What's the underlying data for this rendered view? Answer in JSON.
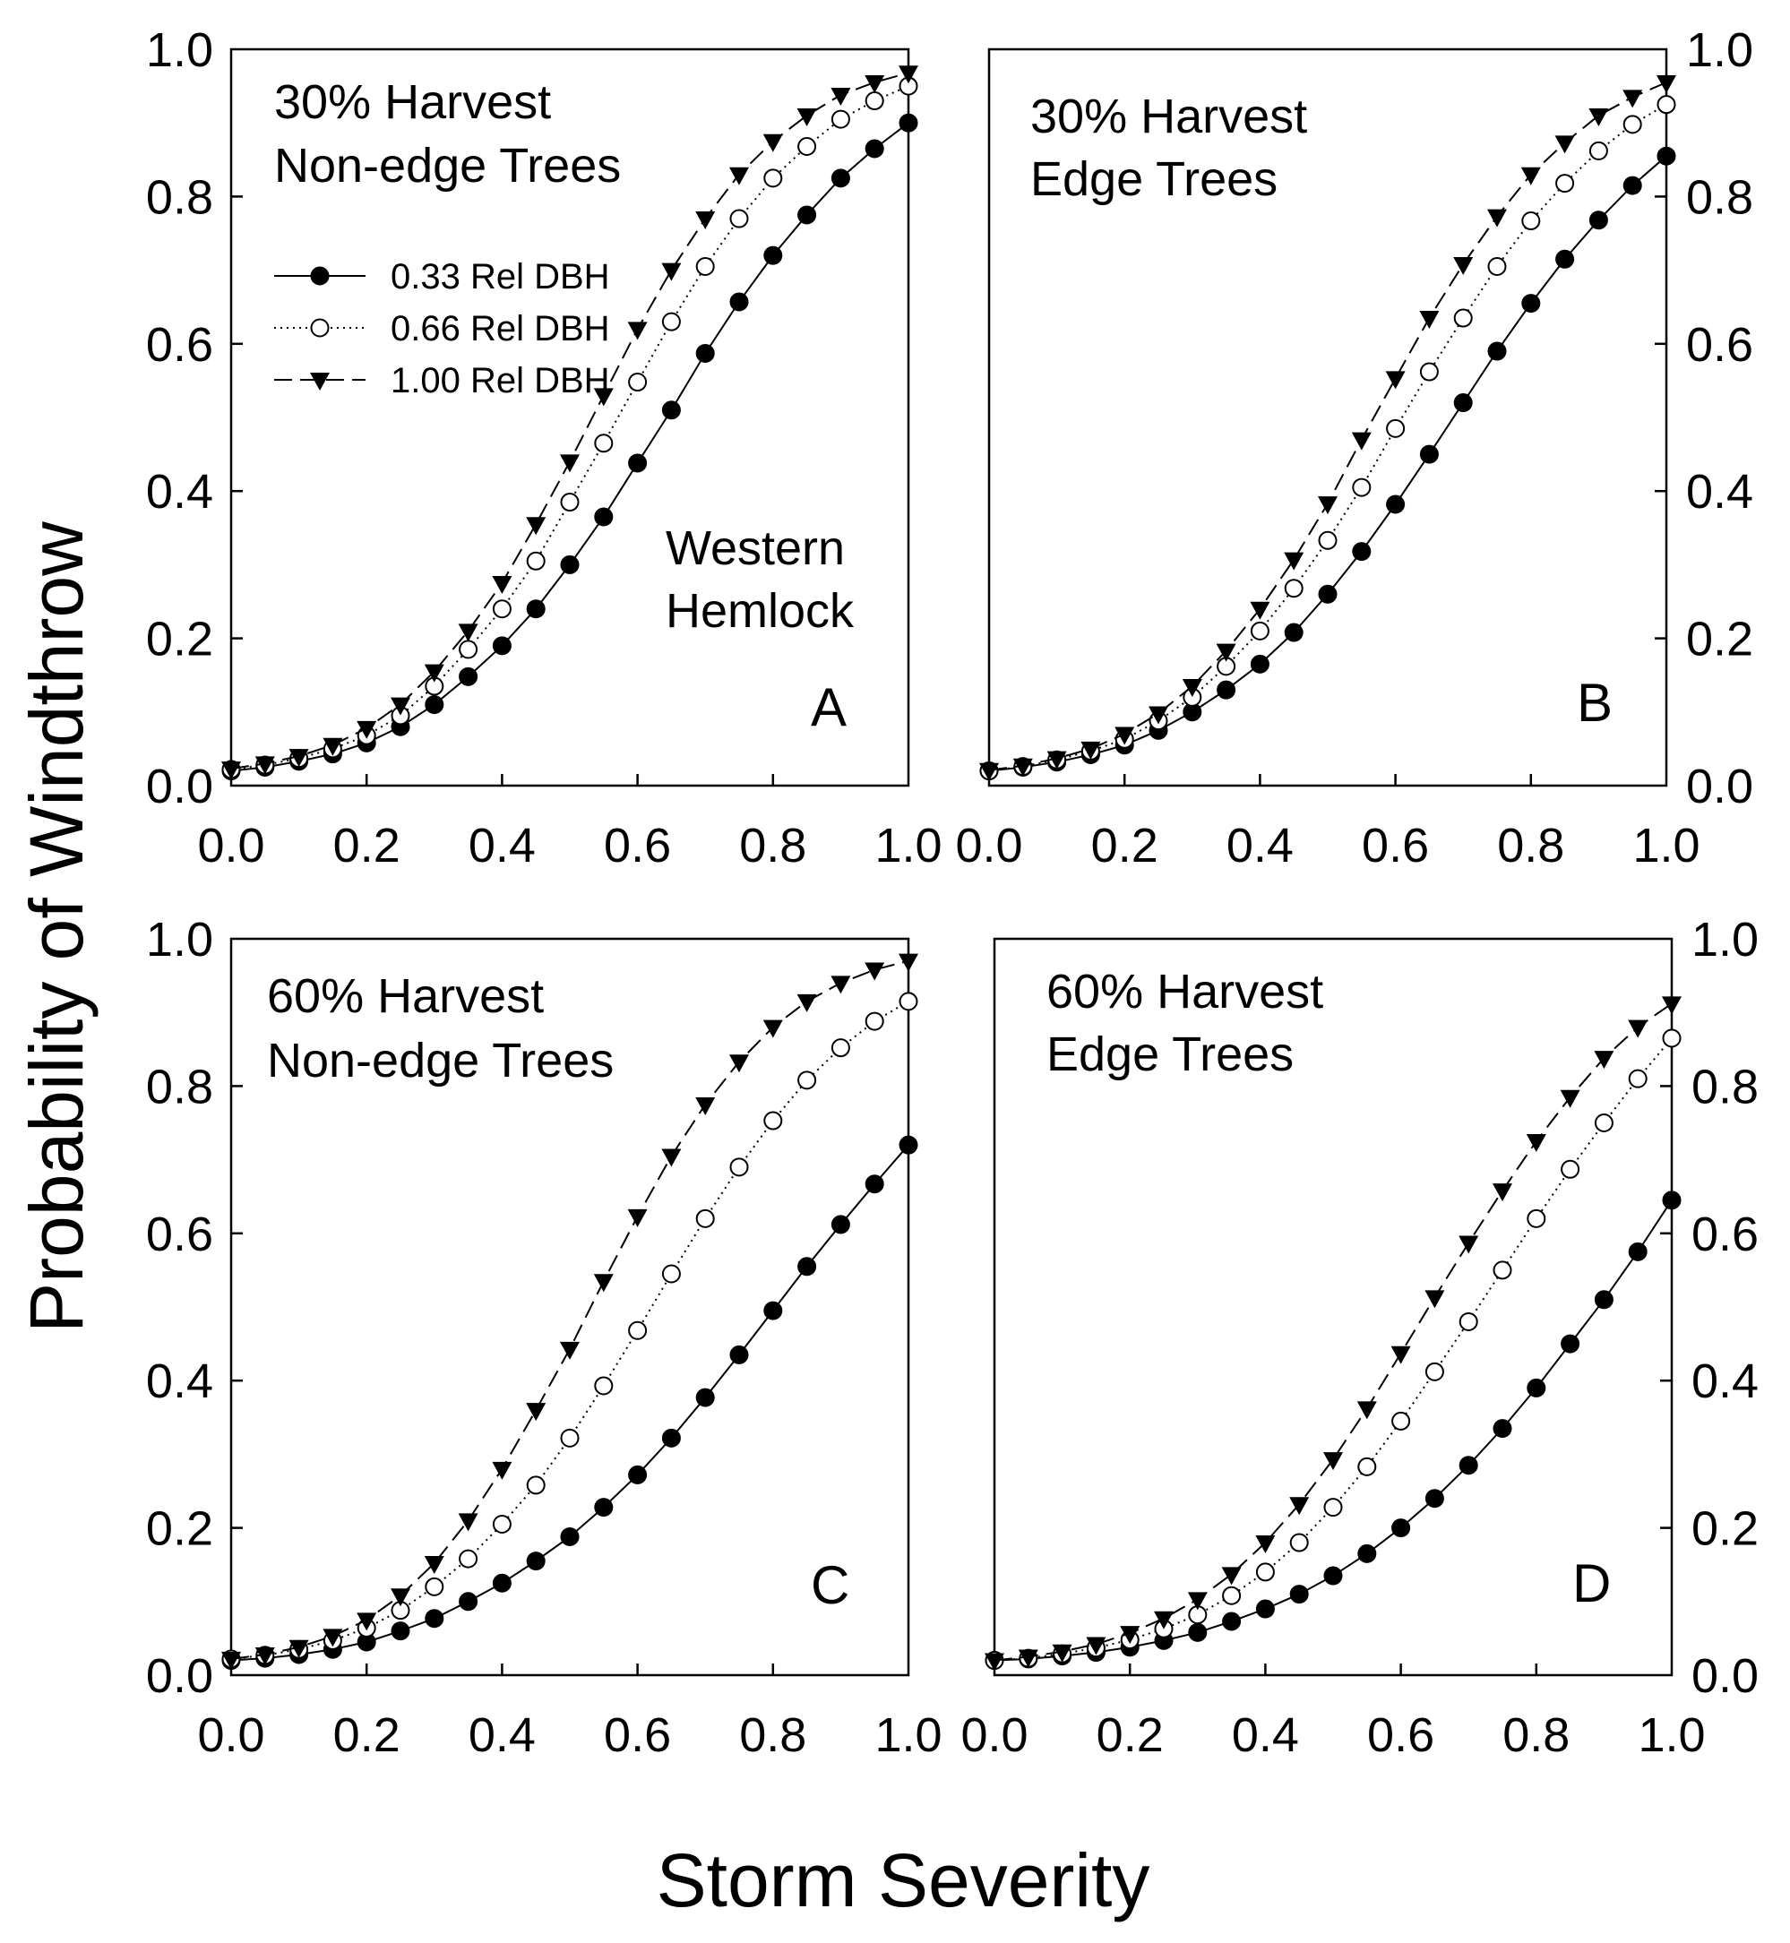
{
  "figure": {
    "xlabel": "Storm Severity",
    "ylabel": "Probability of Windthrow",
    "species_label": [
      "Western",
      "Hemlock"
    ]
  },
  "legend": [
    {
      "label": "0.33 Rel DBH",
      "marker": "filled-circle",
      "line": "solid"
    },
    {
      "label": "0.66 Rel DBH",
      "marker": "open-circle",
      "line": "dotted"
    },
    {
      "label": "1.00 Rel DBH",
      "marker": "filled-triangle-down",
      "line": "dashed"
    }
  ],
  "axes": {
    "xticks": [
      "0.0",
      "0.2",
      "0.4",
      "0.6",
      "0.8",
      "1.0"
    ],
    "yticks": [
      "0.0",
      "0.2",
      "0.4",
      "0.6",
      "0.8",
      "1.0"
    ]
  },
  "chart_data": [
    {
      "type": "line",
      "panel": "A",
      "title": [
        "30% Harvest",
        "Non-edge Trees"
      ],
      "xlabel": "Storm Severity",
      "ylabel": "Probability of Windthrow",
      "xlim": [
        0,
        1
      ],
      "ylim": [
        0,
        1
      ],
      "x": [
        0.0,
        0.05,
        0.1,
        0.15,
        0.2,
        0.25,
        0.3,
        0.35,
        0.4,
        0.45,
        0.5,
        0.55,
        0.6,
        0.65,
        0.7,
        0.75,
        0.8,
        0.85,
        0.9,
        0.95,
        1.0
      ],
      "series": [
        {
          "name": "0.33 Rel DBH",
          "values": [
            0.02,
            0.025,
            0.033,
            0.043,
            0.058,
            0.08,
            0.11,
            0.148,
            0.19,
            0.24,
            0.3,
            0.365,
            0.438,
            0.51,
            0.587,
            0.657,
            0.72,
            0.775,
            0.825,
            0.865,
            0.9
          ]
        },
        {
          "name": "0.66 Rel DBH",
          "values": [
            0.022,
            0.028,
            0.037,
            0.05,
            0.068,
            0.095,
            0.135,
            0.185,
            0.24,
            0.305,
            0.385,
            0.465,
            0.548,
            0.63,
            0.705,
            0.77,
            0.825,
            0.868,
            0.905,
            0.93,
            0.95
          ]
        },
        {
          "name": "1.00 Rel DBH",
          "values": [
            0.023,
            0.03,
            0.04,
            0.055,
            0.078,
            0.11,
            0.155,
            0.21,
            0.275,
            0.355,
            0.44,
            0.53,
            0.62,
            0.7,
            0.77,
            0.83,
            0.875,
            0.91,
            0.938,
            0.955,
            0.968
          ]
        }
      ]
    },
    {
      "type": "line",
      "panel": "B",
      "title": [
        "30% Harvest",
        "Edge Trees"
      ],
      "xlabel": "Storm Severity",
      "ylabel": "Probability of Windthrow",
      "xlim": [
        0,
        1
      ],
      "ylim": [
        0,
        1
      ],
      "x": [
        0.0,
        0.05,
        0.1,
        0.15,
        0.2,
        0.25,
        0.3,
        0.35,
        0.4,
        0.45,
        0.5,
        0.55,
        0.6,
        0.65,
        0.7,
        0.75,
        0.8,
        0.85,
        0.9,
        0.95,
        1.0
      ],
      "series": [
        {
          "name": "0.33 Rel DBH",
          "values": [
            0.02,
            0.025,
            0.032,
            0.042,
            0.055,
            0.075,
            0.1,
            0.13,
            0.165,
            0.208,
            0.26,
            0.318,
            0.382,
            0.45,
            0.52,
            0.59,
            0.655,
            0.715,
            0.768,
            0.815,
            0.855
          ]
        },
        {
          "name": "0.66 Rel DBH",
          "values": [
            0.02,
            0.026,
            0.035,
            0.047,
            0.063,
            0.088,
            0.12,
            0.162,
            0.21,
            0.268,
            0.333,
            0.405,
            0.485,
            0.562,
            0.635,
            0.705,
            0.767,
            0.818,
            0.862,
            0.898,
            0.925
          ]
        },
        {
          "name": "1.00 Rel DBH",
          "values": [
            0.021,
            0.027,
            0.037,
            0.05,
            0.07,
            0.098,
            0.135,
            0.183,
            0.24,
            0.307,
            0.383,
            0.47,
            0.553,
            0.635,
            0.708,
            0.773,
            0.83,
            0.873,
            0.91,
            0.935,
            0.955
          ]
        }
      ]
    },
    {
      "type": "line",
      "panel": "C",
      "title": [
        "60% Harvest",
        "Non-edge Trees"
      ],
      "xlabel": "Storm Severity",
      "ylabel": "Probability of Windthrow",
      "xlim": [
        0,
        1
      ],
      "ylim": [
        0,
        1
      ],
      "x": [
        0.0,
        0.05,
        0.1,
        0.15,
        0.2,
        0.25,
        0.3,
        0.35,
        0.4,
        0.45,
        0.5,
        0.55,
        0.6,
        0.65,
        0.7,
        0.75,
        0.8,
        0.85,
        0.9,
        0.95,
        1.0
      ],
      "series": [
        {
          "name": "0.33 Rel DBH",
          "values": [
            0.02,
            0.023,
            0.028,
            0.035,
            0.045,
            0.06,
            0.077,
            0.1,
            0.125,
            0.155,
            0.188,
            0.228,
            0.272,
            0.322,
            0.377,
            0.435,
            0.495,
            0.555,
            0.612,
            0.667,
            0.72
          ]
        },
        {
          "name": "0.66 Rel DBH",
          "values": [
            0.022,
            0.027,
            0.035,
            0.047,
            0.064,
            0.088,
            0.12,
            0.158,
            0.205,
            0.258,
            0.322,
            0.393,
            0.468,
            0.545,
            0.62,
            0.69,
            0.753,
            0.808,
            0.852,
            0.888,
            0.915
          ]
        },
        {
          "name": "1.00 Rel DBH",
          "values": [
            0.022,
            0.028,
            0.038,
            0.053,
            0.075,
            0.108,
            0.152,
            0.21,
            0.28,
            0.36,
            0.443,
            0.535,
            0.623,
            0.705,
            0.775,
            0.833,
            0.88,
            0.915,
            0.94,
            0.958,
            0.97
          ]
        }
      ]
    },
    {
      "type": "line",
      "panel": "D",
      "title": [
        "60% Harvest",
        "Edge Trees"
      ],
      "xlabel": "Storm Severity",
      "ylabel": "Probability of Windthrow",
      "xlim": [
        0,
        1
      ],
      "ylim": [
        0,
        1
      ],
      "x": [
        0.0,
        0.05,
        0.1,
        0.15,
        0.2,
        0.25,
        0.3,
        0.35,
        0.4,
        0.45,
        0.5,
        0.55,
        0.6,
        0.65,
        0.7,
        0.75,
        0.8,
        0.85,
        0.9,
        0.95,
        1.0
      ],
      "series": [
        {
          "name": "0.33 Rel DBH",
          "values": [
            0.02,
            0.022,
            0.026,
            0.031,
            0.038,
            0.047,
            0.058,
            0.073,
            0.09,
            0.11,
            0.135,
            0.165,
            0.2,
            0.24,
            0.285,
            0.335,
            0.39,
            0.45,
            0.51,
            0.575,
            0.645
          ]
        },
        {
          "name": "0.66 Rel DBH",
          "values": [
            0.02,
            0.023,
            0.029,
            0.037,
            0.048,
            0.063,
            0.082,
            0.108,
            0.14,
            0.18,
            0.228,
            0.283,
            0.345,
            0.412,
            0.48,
            0.55,
            0.62,
            0.687,
            0.75,
            0.81,
            0.865
          ]
        },
        {
          "name": "1.00 Rel DBH",
          "values": [
            0.02,
            0.025,
            0.032,
            0.042,
            0.057,
            0.077,
            0.103,
            0.137,
            0.18,
            0.232,
            0.293,
            0.362,
            0.437,
            0.513,
            0.587,
            0.658,
            0.725,
            0.785,
            0.838,
            0.88,
            0.912
          ]
        }
      ]
    }
  ]
}
